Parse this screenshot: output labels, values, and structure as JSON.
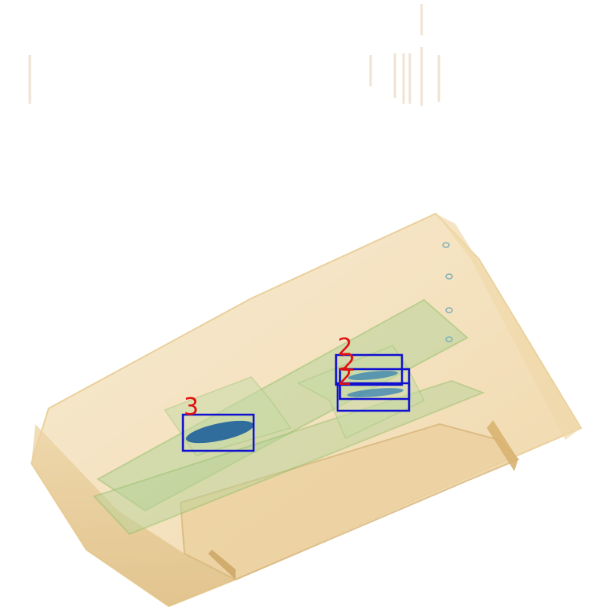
{
  "scene": {
    "background": "#ffffff",
    "volume_fill": "#f2dcae",
    "volume_edge": "#e2c489",
    "volume_shadow": "#d8b478",
    "plate_fill": "#b9d39a",
    "plate_edge": "#8fbf6a",
    "object_color": "#1f5f9a"
  },
  "detections": {
    "box_color": "#1010d0",
    "label_color": "#e01010",
    "items": [
      {
        "label": "2"
      },
      {
        "label": "2"
      },
      {
        "label": "2"
      },
      {
        "label": "3"
      }
    ]
  }
}
